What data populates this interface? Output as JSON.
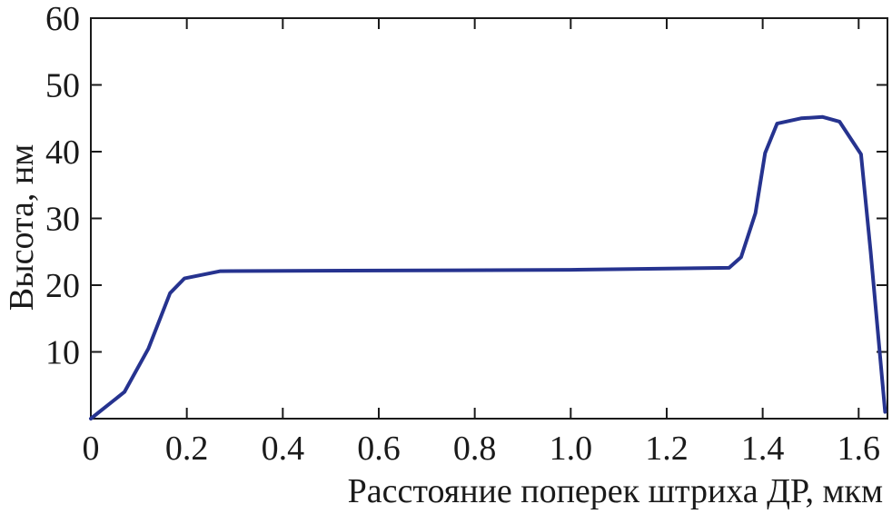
{
  "chart_data": {
    "type": "line",
    "title": "",
    "xlabel": "Расстояние поперек штриха ДР, мкм",
    "ylabel": "Высота, нм",
    "xlim": [
      0,
      1.66
    ],
    "ylim": [
      0,
      60
    ],
    "grid": false,
    "x_ticks": [
      {
        "value": 0,
        "label": "0"
      },
      {
        "value": 0.2,
        "label": "0.2"
      },
      {
        "value": 0.4,
        "label": "0.4"
      },
      {
        "value": 0.6,
        "label": "0.6"
      },
      {
        "value": 0.8,
        "label": "0.8"
      },
      {
        "value": 1.0,
        "label": "1.0"
      },
      {
        "value": 1.2,
        "label": "1.2"
      },
      {
        "value": 1.4,
        "label": "1.4"
      },
      {
        "value": 1.6,
        "label": "1.6"
      }
    ],
    "y_ticks": [
      {
        "value": 10,
        "label": "10"
      },
      {
        "value": 20,
        "label": "20"
      },
      {
        "value": 30,
        "label": "30"
      },
      {
        "value": 40,
        "label": "40"
      },
      {
        "value": 50,
        "label": "50"
      },
      {
        "value": 60,
        "label": "60"
      }
    ],
    "series": [
      {
        "color": "#26338f",
        "x": [
          0,
          0.07,
          0.12,
          0.165,
          0.195,
          0.27,
          1.0,
          1.33,
          1.355,
          1.385,
          1.405,
          1.43,
          1.48,
          1.525,
          1.56,
          1.605,
          1.625,
          1.655
        ],
        "y": [
          0,
          4,
          10.5,
          18.8,
          21,
          22.1,
          22.3,
          22.6,
          24.2,
          30.8,
          39.8,
          44.2,
          45,
          45.2,
          44.5,
          39.6,
          25,
          1
        ]
      }
    ]
  }
}
